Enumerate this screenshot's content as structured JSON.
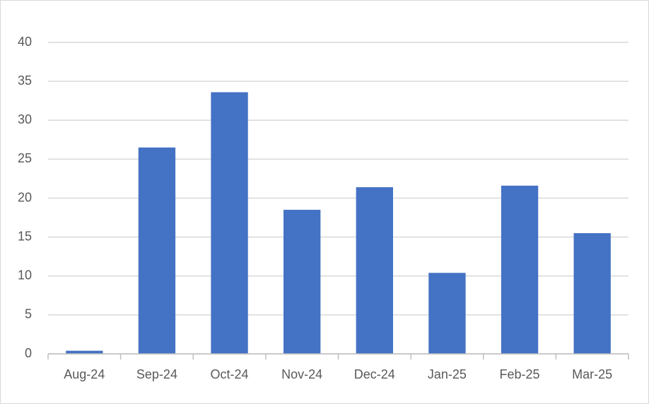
{
  "chart_data": {
    "type": "bar",
    "categories": [
      "Aug-24",
      "Sep-24",
      "Oct-24",
      "Nov-24",
      "Dec-24",
      "Jan-25",
      "Feb-25",
      "Mar-25"
    ],
    "values": [
      0.4,
      26.5,
      33.6,
      18.5,
      21.4,
      10.4,
      21.6,
      15.5
    ],
    "color": "#4472c4",
    "ylim": [
      0,
      40
    ],
    "yticks": [
      0,
      5,
      10,
      15,
      20,
      25,
      30,
      35,
      40
    ],
    "grid": true
  }
}
